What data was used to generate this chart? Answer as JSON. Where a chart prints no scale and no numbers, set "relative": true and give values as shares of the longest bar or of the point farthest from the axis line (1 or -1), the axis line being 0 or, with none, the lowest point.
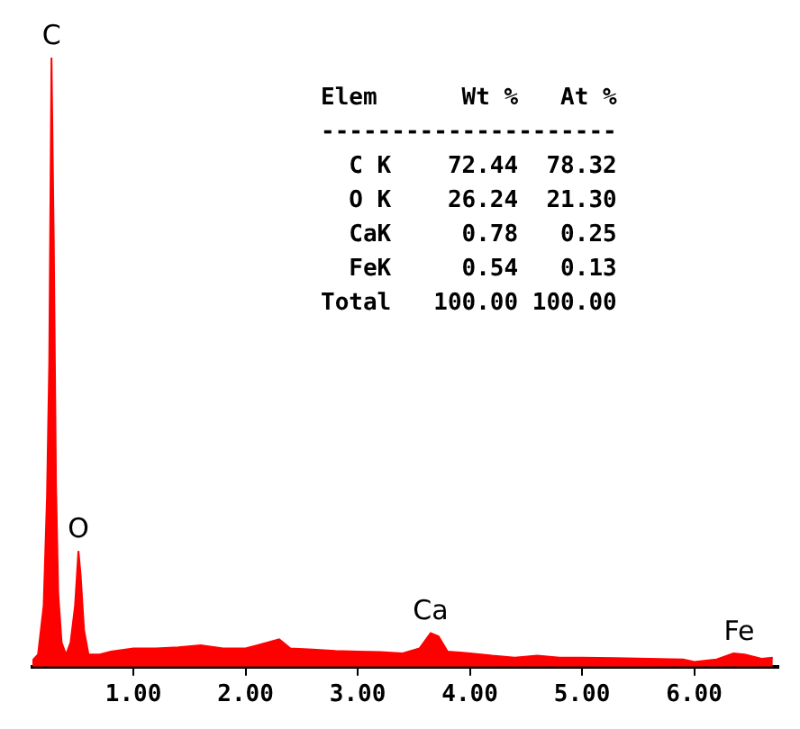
{
  "chart_data": {
    "type": "area",
    "relative": true,
    "grid": false,
    "legend": false,
    "color": "#ff0000",
    "x": [
      0.1,
      0.15,
      0.2,
      0.23,
      0.25,
      0.27,
      0.29,
      0.31,
      0.33,
      0.36,
      0.4,
      0.44,
      0.48,
      0.51,
      0.53,
      0.56,
      0.6,
      0.7,
      0.8,
      1.0,
      1.2,
      1.4,
      1.6,
      1.8,
      2.0,
      2.1,
      2.3,
      2.4,
      2.6,
      2.8,
      3.0,
      3.2,
      3.4,
      3.55,
      3.65,
      3.72,
      3.8,
      4.0,
      4.2,
      4.4,
      4.6,
      4.8,
      5.0,
      5.3,
      5.6,
      5.9,
      6.0,
      6.2,
      6.35,
      6.45,
      6.6,
      6.7
    ],
    "values": [
      0.01,
      0.02,
      0.1,
      0.28,
      0.5,
      1.0,
      0.7,
      0.3,
      0.12,
      0.04,
      0.02,
      0.04,
      0.1,
      0.19,
      0.15,
      0.06,
      0.02,
      0.02,
      0.025,
      0.03,
      0.03,
      0.032,
      0.035,
      0.03,
      0.03,
      0.035,
      0.045,
      0.03,
      0.028,
      0.026,
      0.025,
      0.024,
      0.022,
      0.03,
      0.055,
      0.05,
      0.025,
      0.022,
      0.018,
      0.015,
      0.018,
      0.015,
      0.015,
      0.014,
      0.013,
      0.012,
      0.008,
      0.012,
      0.022,
      0.02,
      0.013,
      0.015
    ],
    "xlim": [
      0.1,
      6.75
    ],
    "xticks": [
      {
        "value": 1,
        "label": "1.00"
      },
      {
        "value": 2,
        "label": "2.00"
      },
      {
        "value": 3,
        "label": "3.00"
      },
      {
        "value": 4,
        "label": "4.00"
      },
      {
        "value": 5,
        "label": "5.00"
      },
      {
        "value": 6,
        "label": "6.00"
      }
    ],
    "annotations": [
      {
        "text": "C",
        "x": 0.27,
        "y": 1.0
      },
      {
        "text": "O",
        "x": 0.51,
        "y": 0.19
      },
      {
        "text": "Ca",
        "x": 3.65,
        "y": 0.055
      },
      {
        "text": "Fe",
        "x": 6.4,
        "y": 0.022
      },
      "Elem      Wt %   At %",
      "---------------------",
      "  C K    72.44  78.32",
      "  O K    26.24  21.30",
      "  CaK     0.78   0.25",
      "  FeK     0.54   0.13",
      "Total   100.00 100.00"
    ]
  }
}
